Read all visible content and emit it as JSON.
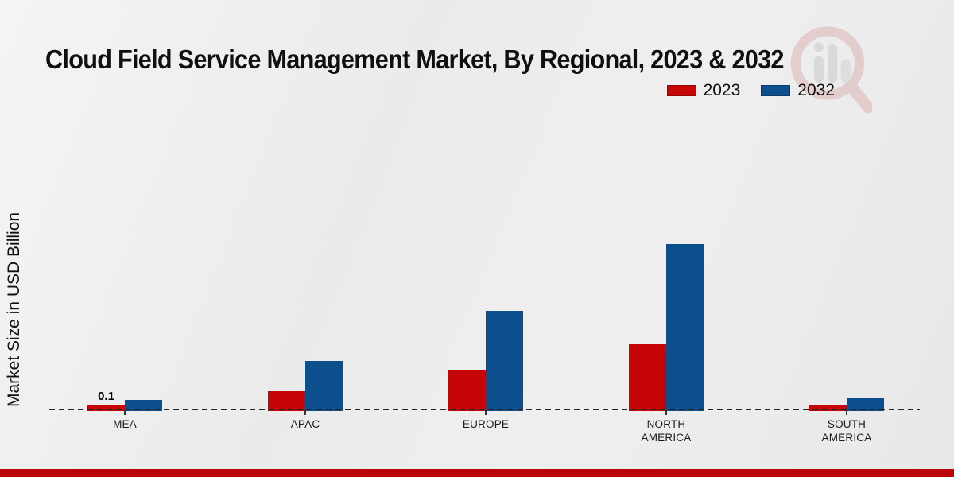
{
  "chart_data": {
    "type": "bar",
    "title": "Cloud Field Service Management Market, By Regional, 2023 & 2032",
    "ylabel": "Market Size in USD Billion",
    "unit": "USD Billion",
    "categories": [
      "MEA",
      "APAC",
      "EUROPE",
      "NORTH\nAMERICA",
      "SOUTH\nAMERICA"
    ],
    "series": [
      {
        "name": "2023",
        "color": "#c60606",
        "values": [
          0.1,
          0.35,
          0.73,
          1.2,
          0.1
        ],
        "labels": [
          "0.1",
          "",
          "",
          "",
          ""
        ]
      },
      {
        "name": "2032",
        "color": "#0d4e8c",
        "values": [
          0.2,
          0.9,
          1.8,
          3.0,
          0.23
        ],
        "labels": [
          "",
          "",
          "",
          "",
          ""
        ]
      }
    ],
    "ylim": [
      0,
      3.2
    ],
    "grid": false,
    "legend_position": "top-right",
    "x_axis_style": "dashed-baseline"
  },
  "footer": {
    "accent_color": "#b90606"
  }
}
